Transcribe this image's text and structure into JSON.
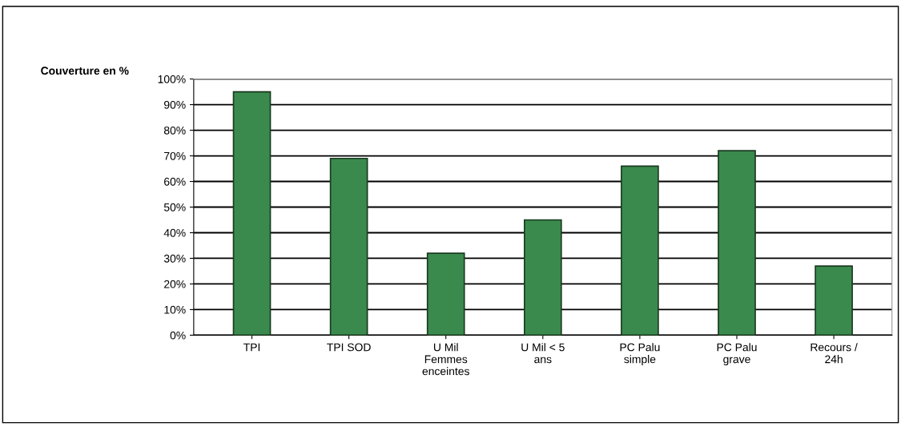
{
  "chart_data": {
    "type": "bar",
    "ylabel": "Couverture en %",
    "categories": [
      "TPI",
      "TPI SOD",
      "U Mil\nFemmes\nenceintes",
      "U Mil < 5\nans",
      "PC Palu\nsimple",
      "PC Palu\ngrave",
      "Recours /\n24h"
    ],
    "values": [
      95,
      69,
      32,
      45,
      66,
      72,
      27
    ],
    "color": "#3a8a4e",
    "ylim": [
      0,
      100
    ],
    "yticks": [
      {
        "value": 0,
        "label": "0%"
      },
      {
        "value": 10,
        "label": "10%"
      },
      {
        "value": 20,
        "label": "20%"
      },
      {
        "value": 30,
        "label": "30%"
      },
      {
        "value": 40,
        "label": "40%"
      },
      {
        "value": 50,
        "label": "50%"
      },
      {
        "value": 60,
        "label": "60%"
      },
      {
        "value": 70,
        "label": "70%"
      },
      {
        "value": 80,
        "label": "80%"
      },
      {
        "value": 90,
        "label": "90%"
      },
      {
        "value": 100,
        "label": "100%"
      }
    ],
    "grid": "y"
  }
}
